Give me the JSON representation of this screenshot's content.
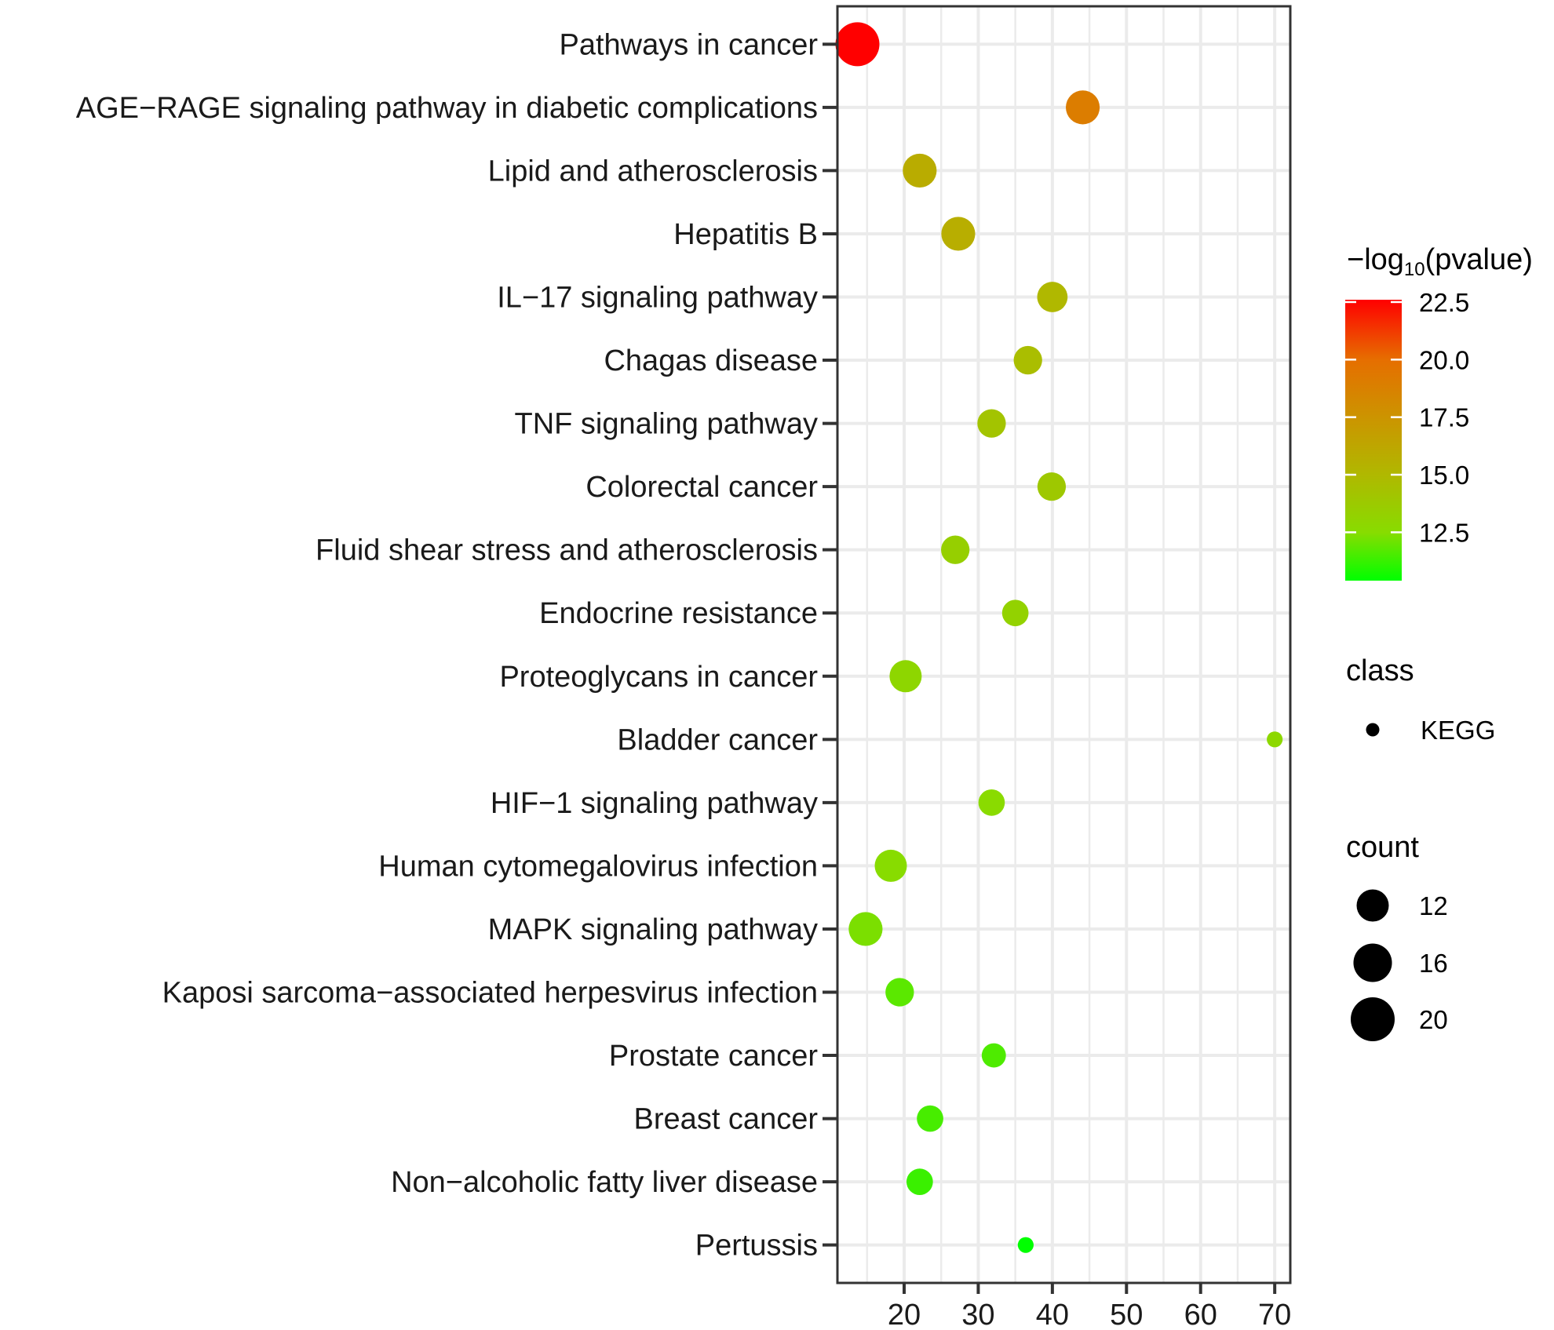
{
  "chart_data": {
    "type": "scatter",
    "subtype": "bubble",
    "title": "",
    "xlabel": "",
    "ylabel": "",
    "xlim": [
      11.0,
      72.1
    ],
    "x_ticks": [
      20,
      30,
      40,
      50,
      60,
      70
    ],
    "x_tick_labels": [
      "20",
      "30",
      "40",
      "50",
      "60",
      "70"
    ],
    "grid": true,
    "categories": [
      "Pathways in cancer",
      "AGE−RAGE signaling pathway in diabetic complications",
      "Lipid and atherosclerosis",
      "Hepatitis B",
      "IL−17 signaling pathway",
      "Chagas disease",
      "TNF signaling pathway",
      "Colorectal cancer",
      "Fluid shear stress and atherosclerosis",
      "Endocrine resistance",
      "Proteoglycans in cancer",
      "Bladder cancer",
      "HIF−1 signaling pathway",
      "Human cytomegalovirus infection",
      "MAPK signaling pathway",
      "Kaposi sarcoma−associated herpesvirus infection",
      "Prostate cancer",
      "Breast cancer",
      "Non−alcoholic fatty liver disease",
      "Pertussis"
    ],
    "points": [
      {
        "term": "Pathways in cancer",
        "x": 13.7,
        "count": 20,
        "neg_log10_p": 22.6,
        "class": "KEGG"
      },
      {
        "term": "AGE−RAGE signaling pathway in diabetic complications",
        "x": 44.1,
        "count": 13,
        "neg_log10_p": 19.0,
        "class": "KEGG"
      },
      {
        "term": "Lipid and atherosclerosis",
        "x": 22.1,
        "count": 13,
        "neg_log10_p": 15.8,
        "class": "KEGG"
      },
      {
        "term": "Hepatitis B",
        "x": 27.3,
        "count": 13,
        "neg_log10_p": 15.7,
        "class": "KEGG"
      },
      {
        "term": "IL−17 signaling pathway",
        "x": 40.0,
        "count": 11,
        "neg_log10_p": 15.0,
        "class": "KEGG"
      },
      {
        "term": "Chagas disease",
        "x": 36.7,
        "count": 10,
        "neg_log10_p": 14.6,
        "class": "KEGG"
      },
      {
        "term": "TNF signaling pathway",
        "x": 31.8,
        "count": 10,
        "neg_log10_p": 14.2,
        "class": "KEGG"
      },
      {
        "term": "Colorectal cancer",
        "x": 39.9,
        "count": 10,
        "neg_log10_p": 13.9,
        "class": "KEGG"
      },
      {
        "term": "Fluid shear stress and atherosclerosis",
        "x": 26.9,
        "count": 10,
        "neg_log10_p": 13.4,
        "class": "KEGG"
      },
      {
        "term": "Endocrine resistance",
        "x": 35.0,
        "count": 9,
        "neg_log10_p": 13.2,
        "class": "KEGG"
      },
      {
        "term": "Proteoglycans in cancer",
        "x": 20.2,
        "count": 12,
        "neg_log10_p": 12.9,
        "class": "KEGG"
      },
      {
        "term": "Bladder cancer",
        "x": 70.0,
        "count": 5,
        "neg_log10_p": 12.8,
        "class": "KEGG"
      },
      {
        "term": "HIF−1 signaling pathway",
        "x": 31.8,
        "count": 9,
        "neg_log10_p": 12.6,
        "class": "KEGG"
      },
      {
        "term": "Human cytomegalovirus infection",
        "x": 18.2,
        "count": 12,
        "neg_log10_p": 12.5,
        "class": "KEGG"
      },
      {
        "term": "MAPK signaling pathway",
        "x": 14.8,
        "count": 13,
        "neg_log10_p": 12.3,
        "class": "KEGG"
      },
      {
        "term": "Kaposi sarcoma−associated herpesvirus infection",
        "x": 19.4,
        "count": 10,
        "neg_log10_p": 11.8,
        "class": "KEGG"
      },
      {
        "term": "Prostate cancer",
        "x": 32.1,
        "count": 8,
        "neg_log10_p": 11.6,
        "class": "KEGG"
      },
      {
        "term": "Breast cancer",
        "x": 23.5,
        "count": 9,
        "neg_log10_p": 11.5,
        "class": "KEGG"
      },
      {
        "term": "Non−alcoholic fatty liver disease",
        "x": 22.1,
        "count": 9,
        "neg_log10_p": 11.3,
        "class": "KEGG"
      },
      {
        "term": "Pertussis",
        "x": 36.4,
        "count": 5,
        "neg_log10_p": 10.4,
        "class": "KEGG"
      }
    ],
    "color_scale": {
      "title_prefix": "−log",
      "title_sub": "10",
      "title_suffix": "(pvalue)",
      "range": [
        10.4,
        22.6
      ],
      "ticks": [
        22.5,
        20.0,
        17.5,
        15.0,
        12.5
      ],
      "tick_labels": [
        "22.5",
        "20.0",
        "17.5",
        "15.0",
        "12.5"
      ],
      "low_color": "#00FF00",
      "high_color": "#FF0000",
      "stops": [
        {
          "value": 10.4,
          "color": "#00FF00"
        },
        {
          "value": 12.5,
          "color": "#88DC00"
        },
        {
          "value": 15.0,
          "color": "#B0B800"
        },
        {
          "value": 17.5,
          "color": "#CC9400"
        },
        {
          "value": 20.0,
          "color": "#E66E00"
        },
        {
          "value": 22.6,
          "color": "#FF0000"
        }
      ]
    },
    "legends": {
      "class": {
        "title": "class",
        "entries": [
          "KEGG"
        ]
      },
      "count": {
        "title": "count",
        "breaks": [
          12,
          16,
          20
        ],
        "labels": [
          "12",
          "16",
          "20"
        ]
      }
    },
    "legend_position": "right"
  }
}
